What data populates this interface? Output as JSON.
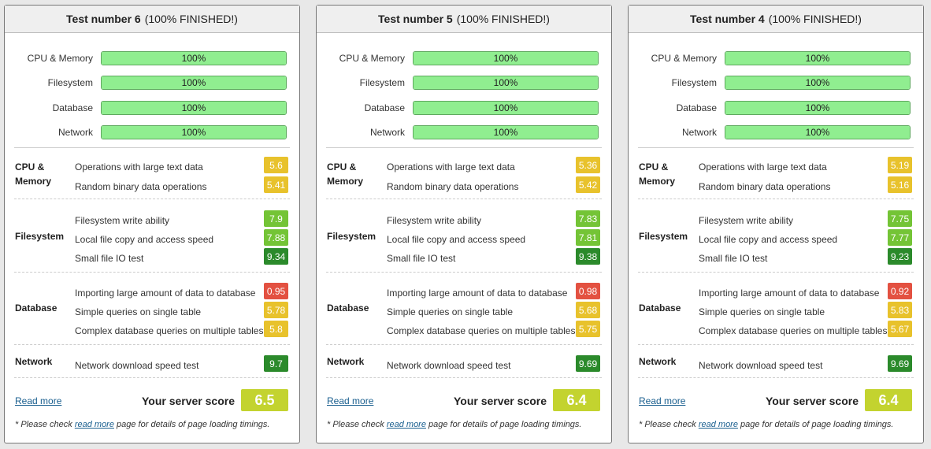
{
  "colors": {
    "progress_fill": "#90ee90",
    "score_yellow": "#e8c22c",
    "score_lightgreen": "#74c436",
    "score_darkgreen": "#2b8a2b",
    "score_red": "#e35141",
    "overall": "#c3d32f"
  },
  "common": {
    "progress_labels": [
      "CPU & Memory",
      "Filesystem",
      "Database",
      "Network"
    ],
    "cat_cpu": "CPU &",
    "cat_cpu2": "Memory",
    "cat_fs": "Filesystem",
    "cat_db": "Database",
    "cat_net": "Network",
    "tests": {
      "cpu1": "Operations with large text data",
      "cpu2": "Random binary data operations",
      "fs1": "Filesystem write ability",
      "fs2": "Local file copy and access speed",
      "fs3": "Small file IO test",
      "db1": "Importing large amount of data to database",
      "db2": "Simple queries on single table",
      "db3": "Complex database queries on multiple tables",
      "net1": "Network download speed test"
    },
    "read_more": "Read more",
    "your_score": "Your server score",
    "note_pre": "* Please check ",
    "note_link": "read more",
    "note_post": " page for details of page loading timings."
  },
  "cards": [
    {
      "title": "Test number 6",
      "status": "(100% FINISHED!)",
      "progress": [
        {
          "pct": 100,
          "text": "100%"
        },
        {
          "pct": 100,
          "text": "100%"
        },
        {
          "pct": 100,
          "text": "100%"
        },
        {
          "pct": 100,
          "text": "100%"
        }
      ],
      "scores": {
        "cpu1": "5.6",
        "cpu2": "5.41",
        "fs1": "7.9",
        "fs2": "7.88",
        "fs3": "9.34",
        "db1": "0.95",
        "db2": "5.78",
        "db3": "5.8",
        "net1": "9.7"
      },
      "overall": "6.5"
    },
    {
      "title": "Test number 5",
      "status": "(100% FINISHED!)",
      "progress": [
        {
          "pct": 100,
          "text": "100%"
        },
        {
          "pct": 100,
          "text": "100%"
        },
        {
          "pct": 100,
          "text": "100%"
        },
        {
          "pct": 100,
          "text": "100%"
        }
      ],
      "scores": {
        "cpu1": "5.36",
        "cpu2": "5.42",
        "fs1": "7.83",
        "fs2": "7.81",
        "fs3": "9.38",
        "db1": "0.98",
        "db2": "5.68",
        "db3": "5.75",
        "net1": "9.69"
      },
      "overall": "6.4"
    },
    {
      "title": "Test number 4",
      "status": "(100% FINISHED!)",
      "progress": [
        {
          "pct": 100,
          "text": "100%"
        },
        {
          "pct": 100,
          "text": "100%"
        },
        {
          "pct": 100,
          "text": "100%"
        },
        {
          "pct": 100,
          "text": "100%"
        }
      ],
      "scores": {
        "cpu1": "5.19",
        "cpu2": "5.16",
        "fs1": "7.75",
        "fs2": "7.77",
        "fs3": "9.23",
        "db1": "0.92",
        "db2": "5.83",
        "db3": "5.67",
        "net1": "9.69"
      },
      "overall": "6.4"
    }
  ]
}
